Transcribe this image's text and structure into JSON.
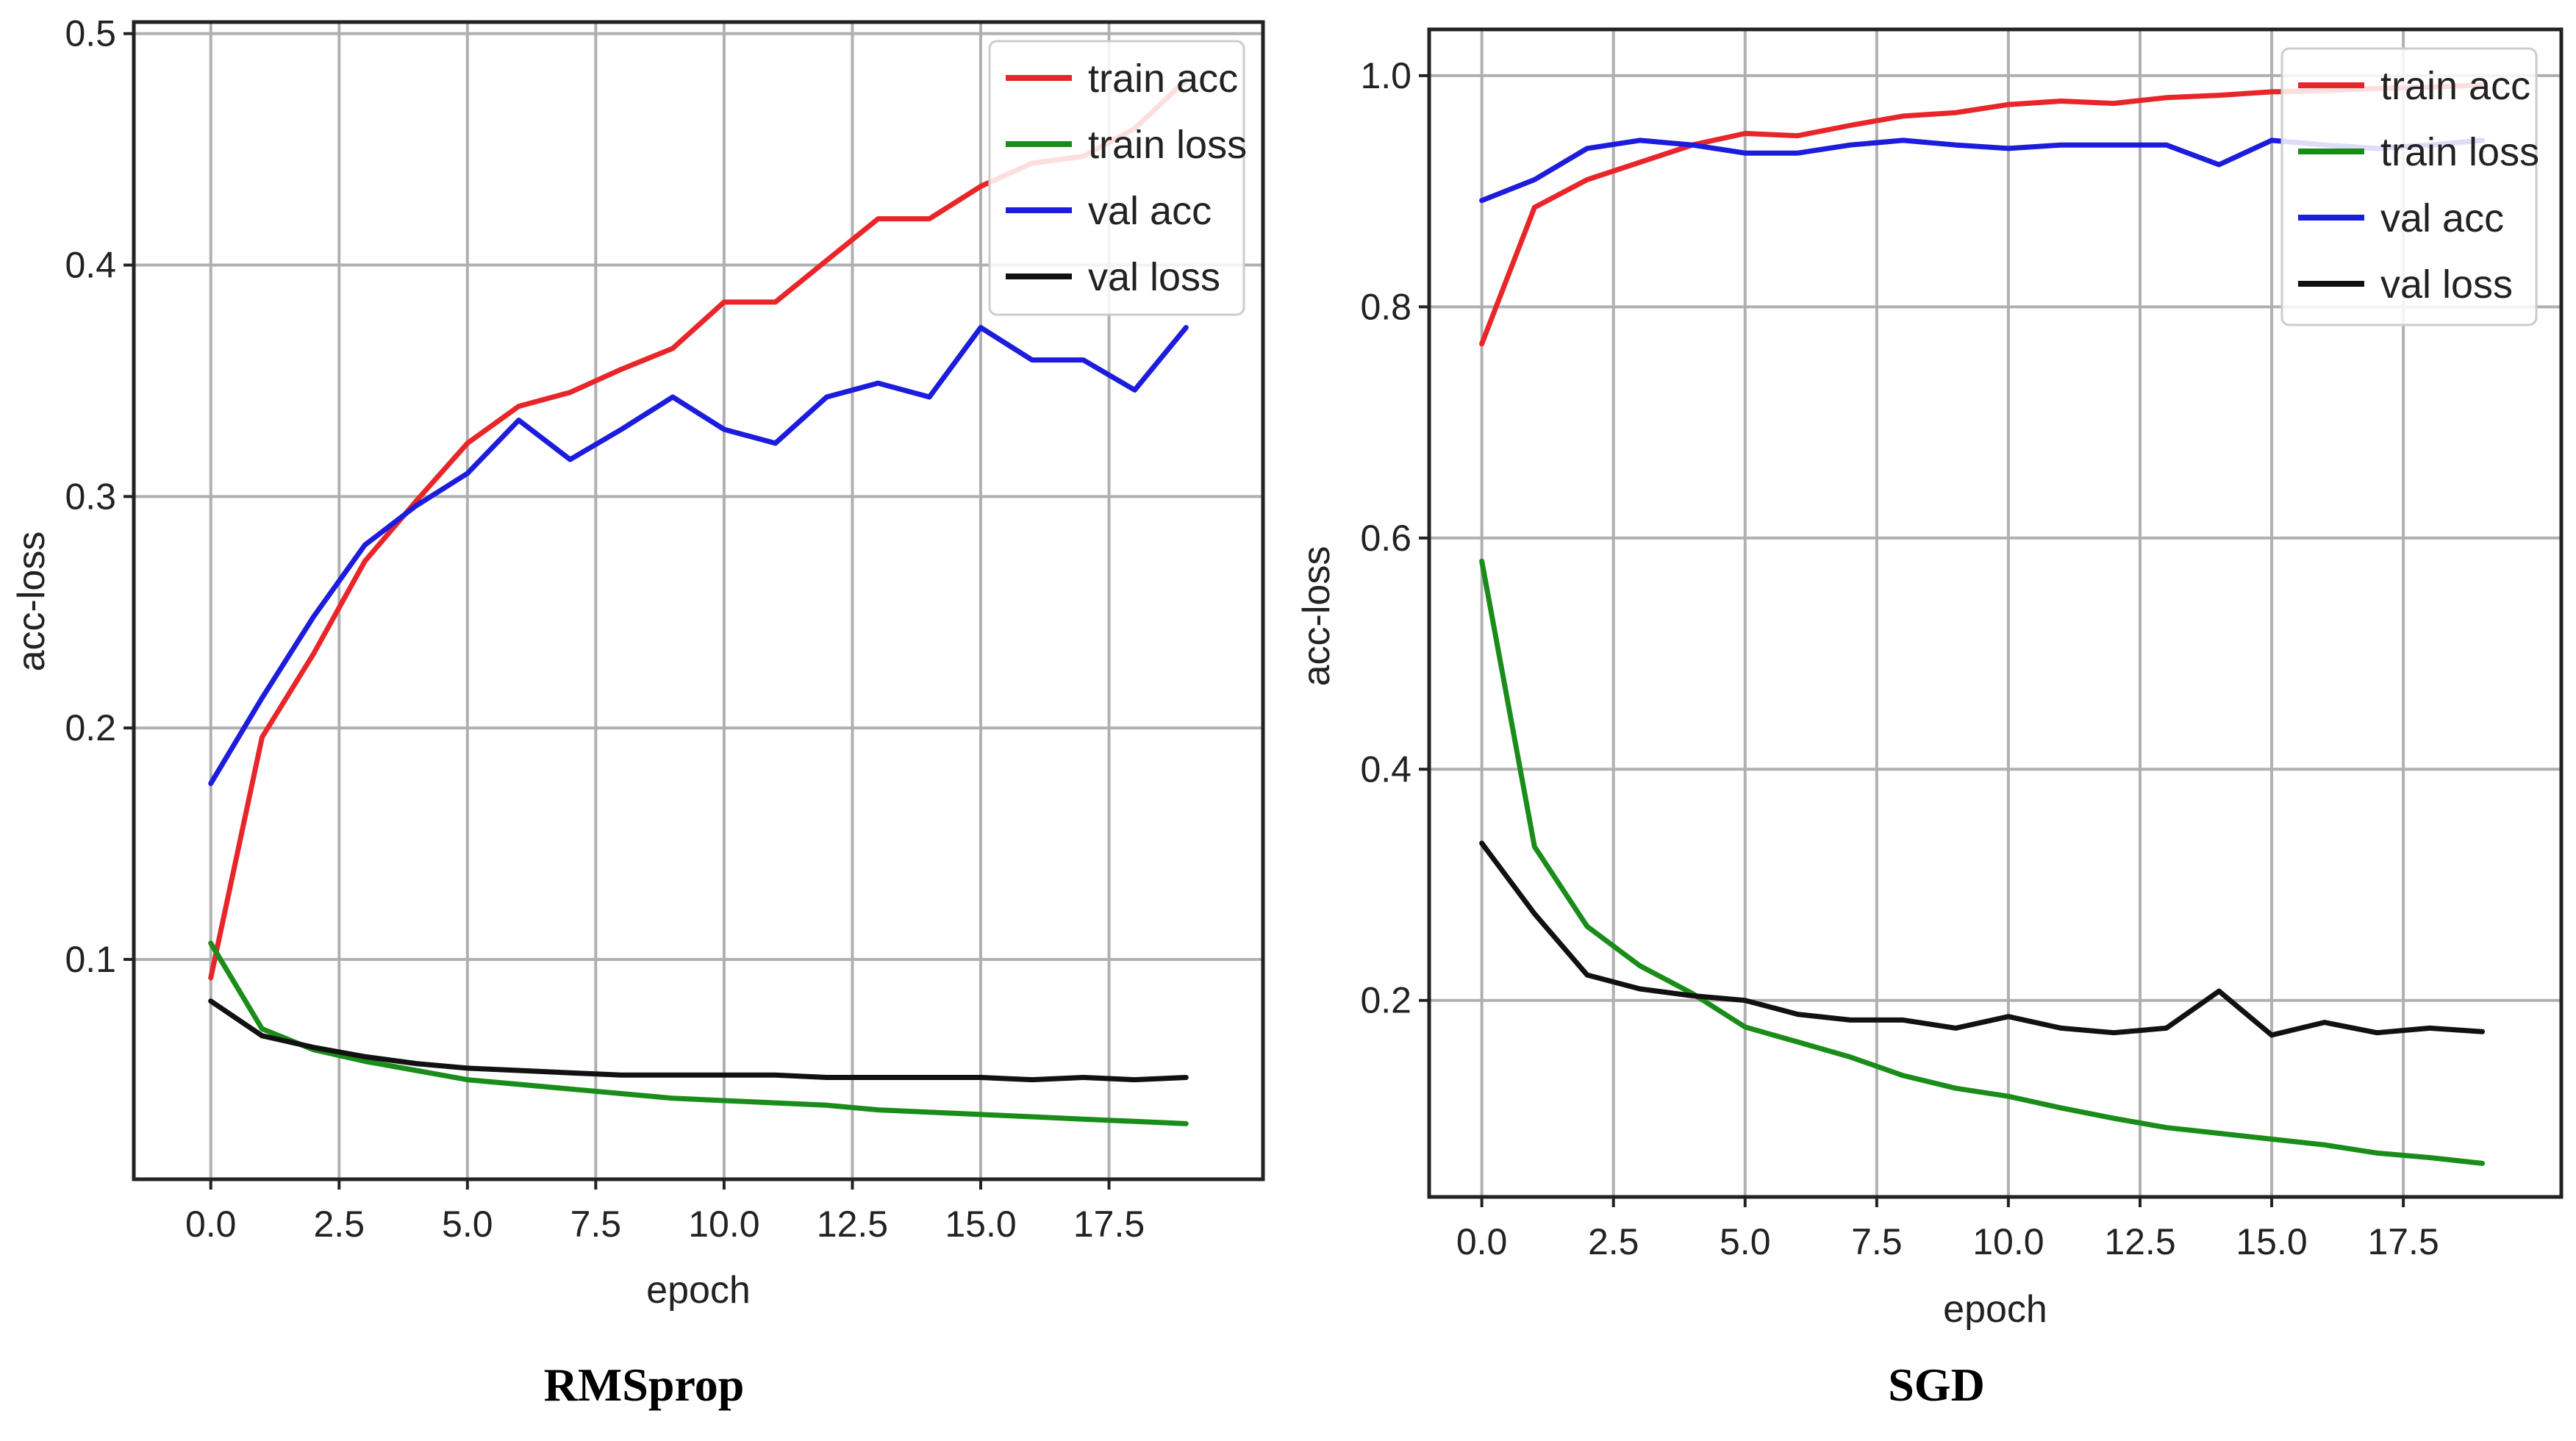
{
  "chart_data": [
    {
      "type": "line",
      "caption": "RMSprop",
      "xlabel": "epoch",
      "ylabel": "acc-loss",
      "xlim": [
        -1.5,
        20.5
      ],
      "ylim": [
        0.005,
        0.505
      ],
      "xticks": [
        0.0,
        2.5,
        5.0,
        7.5,
        10.0,
        12.5,
        15.0,
        17.5
      ],
      "xtick_labels": [
        "0.0",
        "2.5",
        "5.0",
        "7.5",
        "10.0",
        "12.5",
        "15.0",
        "17.5"
      ],
      "yticks": [
        0.1,
        0.2,
        0.3,
        0.4,
        0.5
      ],
      "ytick_labels": [
        "0.1",
        "0.2",
        "0.3",
        "0.4",
        "0.5"
      ],
      "grid": true,
      "legend_position": "top-right",
      "x": [
        0,
        1,
        2,
        3,
        4,
        5,
        6,
        7,
        8,
        9,
        10,
        11,
        12,
        13,
        14,
        15,
        16,
        17,
        18,
        19
      ],
      "series": [
        {
          "name": "train acc",
          "color": "#e8262a",
          "values": [
            0.092,
            0.196,
            0.232,
            0.272,
            0.298,
            0.323,
            0.339,
            0.345,
            0.355,
            0.364,
            0.384,
            0.384,
            0.402,
            0.42,
            0.42,
            0.434,
            0.444,
            0.447,
            0.459,
            0.48
          ]
        },
        {
          "name": "train loss",
          "color": "#1a8c1a",
          "values": [
            0.107,
            0.07,
            0.061,
            0.056,
            0.052,
            0.048,
            0.046,
            0.044,
            0.042,
            0.04,
            0.039,
            0.038,
            0.037,
            0.035,
            0.034,
            0.033,
            0.032,
            0.031,
            0.03,
            0.029
          ]
        },
        {
          "name": "val acc",
          "color": "#1c1cdd",
          "values": [
            0.176,
            0.213,
            0.248,
            0.279,
            0.296,
            0.31,
            0.333,
            0.316,
            0.329,
            0.343,
            0.329,
            0.323,
            0.343,
            0.349,
            0.343,
            0.373,
            0.359,
            0.359,
            0.346,
            0.373
          ]
        },
        {
          "name": "val loss",
          "color": "#111111",
          "values": [
            0.082,
            0.067,
            0.062,
            0.058,
            0.055,
            0.053,
            0.052,
            0.051,
            0.05,
            0.05,
            0.05,
            0.05,
            0.049,
            0.049,
            0.049,
            0.049,
            0.048,
            0.049,
            0.048,
            0.049
          ]
        }
      ]
    },
    {
      "type": "line",
      "caption": "SGD",
      "xlabel": "epoch",
      "ylabel": "acc-loss",
      "xlim": [
        -1.0,
        20.5
      ],
      "ylim": [
        0.03,
        1.04
      ],
      "xticks": [
        0.0,
        2.5,
        5.0,
        7.5,
        10.0,
        12.5,
        15.0,
        17.5
      ],
      "xtick_labels": [
        "0.0",
        "2.5",
        "5.0",
        "7.5",
        "10.0",
        "12.5",
        "15.0",
        "17.5"
      ],
      "yticks": [
        0.2,
        0.4,
        0.6,
        0.8,
        1.0
      ],
      "ytick_labels": [
        "0.2",
        "0.4",
        "0.6",
        "0.8",
        "1.0"
      ],
      "grid": true,
      "legend_position": "top-right",
      "x": [
        0,
        1,
        2,
        3,
        4,
        5,
        6,
        7,
        8,
        9,
        10,
        11,
        12,
        13,
        14,
        15,
        16,
        17,
        18,
        19
      ],
      "series": [
        {
          "name": "train acc",
          "color": "#e8262a",
          "values": [
            0.768,
            0.886,
            0.91,
            0.925,
            0.94,
            0.95,
            0.948,
            0.957,
            0.965,
            0.968,
            0.975,
            0.978,
            0.976,
            0.981,
            0.983,
            0.986,
            0.987,
            0.989,
            0.99,
            0.992
          ]
        },
        {
          "name": "train loss",
          "color": "#1a8c1a",
          "values": [
            0.58,
            0.333,
            0.264,
            0.23,
            0.206,
            0.177,
            0.164,
            0.151,
            0.135,
            0.124,
            0.117,
            0.107,
            0.098,
            0.09,
            0.085,
            0.08,
            0.075,
            0.068,
            0.064,
            0.059
          ]
        },
        {
          "name": "val acc",
          "color": "#1c1cdd",
          "values": [
            0.892,
            0.91,
            0.937,
            0.944,
            0.94,
            0.933,
            0.933,
            0.94,
            0.944,
            0.94,
            0.937,
            0.94,
            0.94,
            0.94,
            0.923,
            0.944,
            0.94,
            0.937,
            0.94,
            0.944
          ]
        },
        {
          "name": "val loss",
          "color": "#111111",
          "values": [
            0.336,
            0.275,
            0.222,
            0.21,
            0.204,
            0.2,
            0.188,
            0.183,
            0.183,
            0.176,
            0.186,
            0.176,
            0.172,
            0.176,
            0.208,
            0.17,
            0.181,
            0.172,
            0.176,
            0.173
          ]
        }
      ]
    }
  ]
}
